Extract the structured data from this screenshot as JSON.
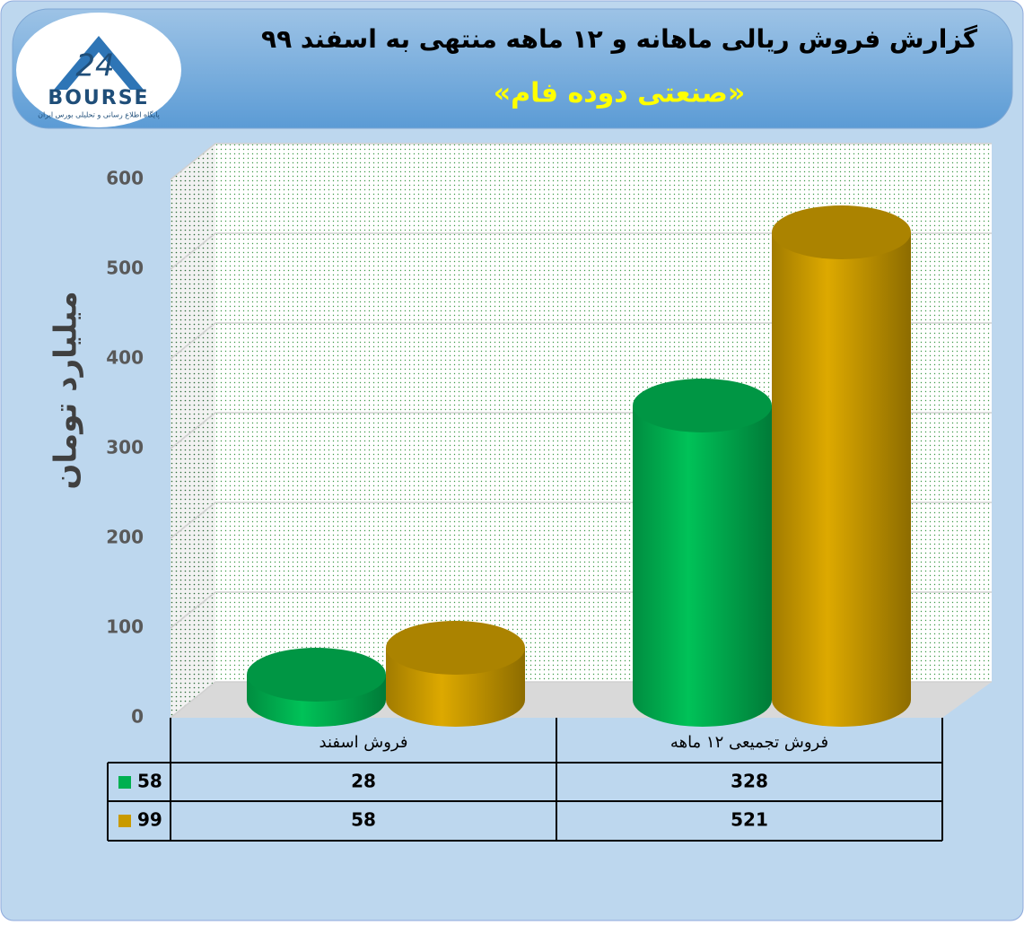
{
  "logo": {
    "number": "24",
    "text": "BOURSE",
    "tagline": "پایگاه اطلاع رسانی و تحلیلی بورس ایران"
  },
  "chart_data": {
    "type": "bar3d",
    "title": "گزارش فروش ریالی ماهانه و ۱۲ ماهه منتهی به اسفند ۹۹",
    "subtitle": "«صنعتی دوده فام»",
    "y_label": "میلیارد تومان",
    "categories": [
      "فروش اسفند",
      "فروش تجمیعی ۱۲ ماهه"
    ],
    "series": [
      {
        "name": "58",
        "color": "#00b050",
        "values": [
          28,
          328
        ]
      },
      {
        "name": "99",
        "color": "#c99a00",
        "values": [
          58,
          521
        ]
      }
    ],
    "ylim": [
      0,
      600
    ],
    "yticks": [
      0,
      100,
      200,
      300,
      400,
      500,
      600
    ],
    "grid": true,
    "data_table": true
  }
}
